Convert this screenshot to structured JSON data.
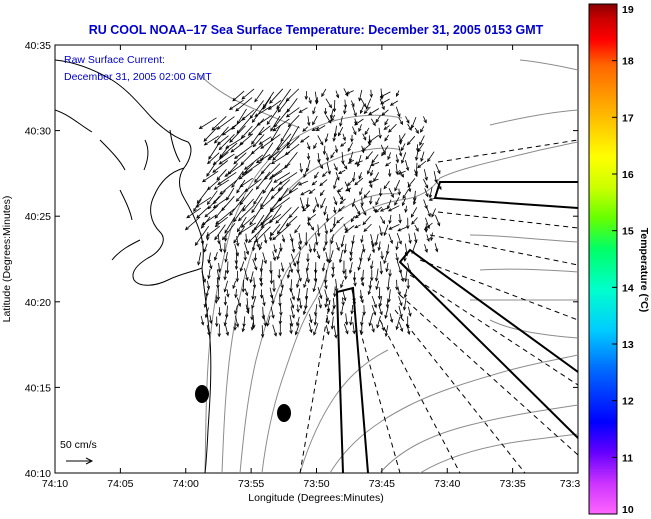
{
  "title": "RU COOL  NOAA–17  Sea Surface Temperature:  December 31, 2005 0153 GMT",
  "overlay": {
    "line1": "Raw Surface Current:",
    "line2": "December 31, 2005 02:00 GMT"
  },
  "axes": {
    "x_label": "Longitude (Degrees:Minutes)",
    "y_label": "Latitude (Degrees:Minutes)",
    "x_ticks": [
      "74:10",
      "74:05",
      "74:00",
      "73:55",
      "73:50",
      "73:45",
      "73:40",
      "73:35",
      "73:3"
    ],
    "y_ticks": [
      "40:35",
      "40:30",
      "40:25",
      "40:20",
      "40:15",
      "40:10"
    ]
  },
  "scale": {
    "label": "50 cm/s"
  },
  "colorbar": {
    "label": "Temperature (°C)",
    "ticks": [
      "19",
      "18",
      "17",
      "16",
      "15",
      "14",
      "13",
      "12",
      "11",
      "10"
    ],
    "min": 10,
    "max": 19,
    "colors": [
      "#ff66ff",
      "#cc33ff",
      "#6600ff",
      "#0000ff",
      "#0066ff",
      "#00ccff",
      "#00ffcc",
      "#00ff66",
      "#66ff00",
      "#ccff00",
      "#ffff00",
      "#ffcc00",
      "#ff9900",
      "#ff6600",
      "#ff0000",
      "#cc0000",
      "#990000",
      "#660000"
    ]
  }
}
